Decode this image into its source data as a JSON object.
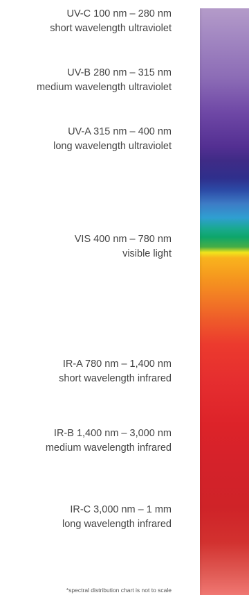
{
  "bands": [
    {
      "range": "UV-C 100 nm – 280 nm",
      "description": "short wavelength ultraviolet"
    },
    {
      "range": "UV-B 280 nm – 315 nm",
      "description": "medium wavelength ultraviolet"
    },
    {
      "range": "UV-A 315 nm – 400 nm",
      "description": "long wavelength ultraviolet"
    },
    {
      "range": "VIS 400 nm – 780 nm",
      "description": "visible light"
    },
    {
      "range": "IR-A 780 nm – 1,400 nm",
      "description": "short wavelength infrared"
    },
    {
      "range": "IR-B 1,400 nm – 3,000 nm",
      "description": "medium wavelength infrared"
    },
    {
      "range": "IR-C 3,000 nm – 1 mm",
      "description": "long wavelength infrared"
    }
  ],
  "footnote": "*spectral distribution chart is not to scale",
  "spectrum_colors": {
    "uv": "#6f48a6",
    "blue": "#2c4aa6",
    "green": "#0ea66a",
    "yellow": "#f0e51c",
    "orange": "#f5941f",
    "red": "#d4222a",
    "infrared_fade": "#f07772"
  }
}
